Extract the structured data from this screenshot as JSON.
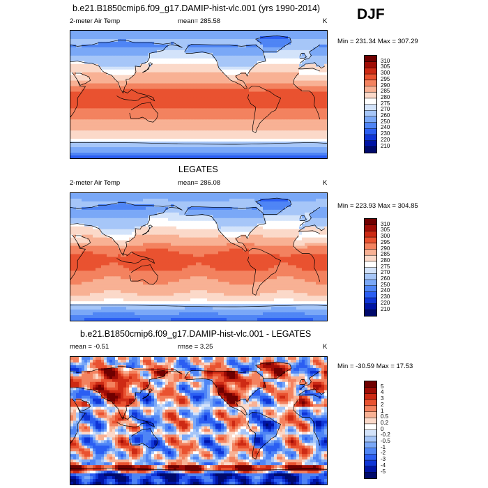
{
  "season": "DJF",
  "chart_data": [
    {
      "type": "heatmap",
      "title": "b.e21.B1850cmip6.f09_g17.DAMIP-hist-vlc.001 (yrs 1990-2014)",
      "left_label": "2-meter Air Temp",
      "center_label": "mean= 285.58",
      "units": "K",
      "min_max": "Min = 231.34 Max = 307.29",
      "colorbar_levels": [
        "210",
        "220",
        "230",
        "240",
        "250",
        "260",
        "270",
        "275",
        "280",
        "285",
        "290",
        "295",
        "300",
        "305",
        "310"
      ],
      "colorbar_colors": [
        "#000a6b",
        "#0014a5",
        "#0f35d6",
        "#2b5ef2",
        "#4f85f5",
        "#7aa8f7",
        "#a6c6f8",
        "#d3e3fa",
        "#ffffff",
        "#fbd9c9",
        "#f8b194",
        "#f3825f",
        "#e95230",
        "#cd2a14",
        "#a00d06",
        "#700000"
      ],
      "field": "model"
    },
    {
      "type": "heatmap",
      "title": "LEGATES",
      "left_label": "2-meter Air Temp",
      "center_label": "mean= 286.08",
      "units": "K",
      "min_max": "Min = 223.93 Max = 304.85",
      "colorbar_levels": [
        "210",
        "220",
        "230",
        "240",
        "250",
        "260",
        "270",
        "275",
        "280",
        "285",
        "290",
        "295",
        "300",
        "305",
        "310"
      ],
      "colorbar_colors": [
        "#000a6b",
        "#0014a5",
        "#0f35d6",
        "#2b5ef2",
        "#4f85f5",
        "#7aa8f7",
        "#a6c6f8",
        "#d3e3fa",
        "#ffffff",
        "#fbd9c9",
        "#f8b194",
        "#f3825f",
        "#e95230",
        "#cd2a14",
        "#a00d06",
        "#700000"
      ],
      "field": "obs"
    },
    {
      "type": "heatmap",
      "title": "b.e21.B1850cmip6.f09_g17.DAMIP-hist-vlc.001 - LEGATES",
      "left_label": "mean =  -0.51",
      "center_label": "rmse =   3.25",
      "units": "K",
      "min_max": "Min = -30.59 Max =  17.53",
      "colorbar_levels": [
        "-5",
        "-4",
        "-3",
        "-2",
        "-1",
        "-0.5",
        "-0.2",
        "0",
        "0.2",
        "0.5",
        "1",
        "2",
        "3",
        "4",
        "5"
      ],
      "colorbar_colors": [
        "#000a6b",
        "#0014a5",
        "#0f35d6",
        "#2b5ef2",
        "#4f85f5",
        "#7aa8f7",
        "#a6c6f8",
        "#d3e3fa",
        "#ffffff",
        "#fbd9c9",
        "#f8b194",
        "#f3825f",
        "#e95230",
        "#cd2a14",
        "#a00d06",
        "#700000"
      ],
      "field": "diff"
    }
  ]
}
